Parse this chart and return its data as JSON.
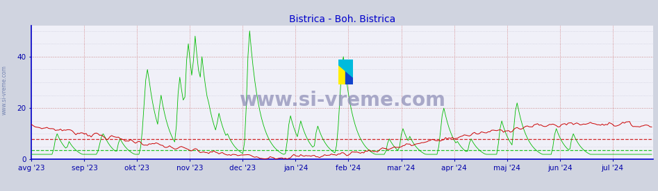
{
  "title": "Bistrica - Boh. Bistrica",
  "title_color": "#0000cc",
  "title_fontsize": 10,
  "bg_color": "#d0d4e0",
  "plot_bg_color": "#f0f0f8",
  "axis_color": "#0000cc",
  "grid_color_v": "#cc6666",
  "grid_color_h": "#c8c8d8",
  "tick_color": "#0000aa",
  "tick_fontsize": 7.5,
  "legend_fontsize": 8,
  "legend_text_color": "#0000aa",
  "ylim": [
    0,
    52
  ],
  "yticks": [
    0,
    20,
    40
  ],
  "x_tick_labels": [
    "avg '23",
    "sep '23",
    "okt '23",
    "nov '23",
    "dec '23",
    "jan '24",
    "feb '24",
    "mar '24",
    "apr '24",
    "maj '24",
    "jun '24",
    "jul '24"
  ],
  "x_tick_positions": [
    0,
    31,
    62,
    93,
    124,
    155,
    186,
    217,
    248,
    279,
    310,
    341
  ],
  "x_vlines": [
    0,
    31,
    62,
    93,
    124,
    155,
    186,
    217,
    248,
    279,
    310,
    341
  ],
  "temp_avg_line": 8.0,
  "flow_avg_line": 3.5,
  "temp_color": "#cc0000",
  "flow_color": "#00bb00",
  "avg_line_style": "--",
  "watermark_text": "www.si-vreme.com",
  "watermark_color": "#9090b8",
  "watermark_fontsize": 20,
  "side_label": "www.si-vreme.com",
  "side_label_color": "#6677aa",
  "side_label_fontsize": 5.5
}
